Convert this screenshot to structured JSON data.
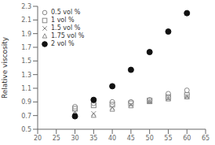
{
  "chart_data": {
    "type": "scatter",
    "x": [
      30,
      35,
      40,
      45,
      50,
      55,
      60
    ],
    "series": [
      {
        "name": "0.5 vol %",
        "color": "#888888",
        "marker": "circle",
        "values": [
          0.83,
          0.88,
          0.9,
          0.9,
          0.93,
          1.02,
          1.07
        ]
      },
      {
        "name": "1 vol %",
        "color": "#888888",
        "marker": "square",
        "values": [
          0.8,
          0.85,
          0.86,
          0.88,
          0.92,
          0.97,
          1.0
        ]
      },
      {
        "name": "1.5 vol %",
        "color": "#888888",
        "marker": "x",
        "values": [
          0.76,
          0.73,
          0.82,
          0.86,
          0.91,
          0.95,
          0.98
        ]
      },
      {
        "name": "1.75 vol %",
        "color": "#888888",
        "marker": "triangle",
        "values": [
          0.72,
          0.7,
          0.79,
          0.84,
          0.9,
          0.94,
          0.97
        ]
      },
      {
        "name": "2 vol %",
        "color": "#111111",
        "marker": "dot",
        "values": [
          0.69,
          0.93,
          1.13,
          1.37,
          1.63,
          1.93,
          2.2
        ]
      }
    ],
    "xlim": [
      20,
      65
    ],
    "ylim": [
      0.5,
      2.3
    ],
    "xticks": [
      20,
      25,
      30,
      35,
      40,
      45,
      50,
      55,
      60,
      65
    ],
    "yticks": [
      0.5,
      0.7,
      0.9,
      1.1,
      1.3,
      1.5,
      1.7,
      1.9,
      2.1,
      2.3
    ],
    "ylabel": "Relative viscosity",
    "legend": "upper left"
  }
}
